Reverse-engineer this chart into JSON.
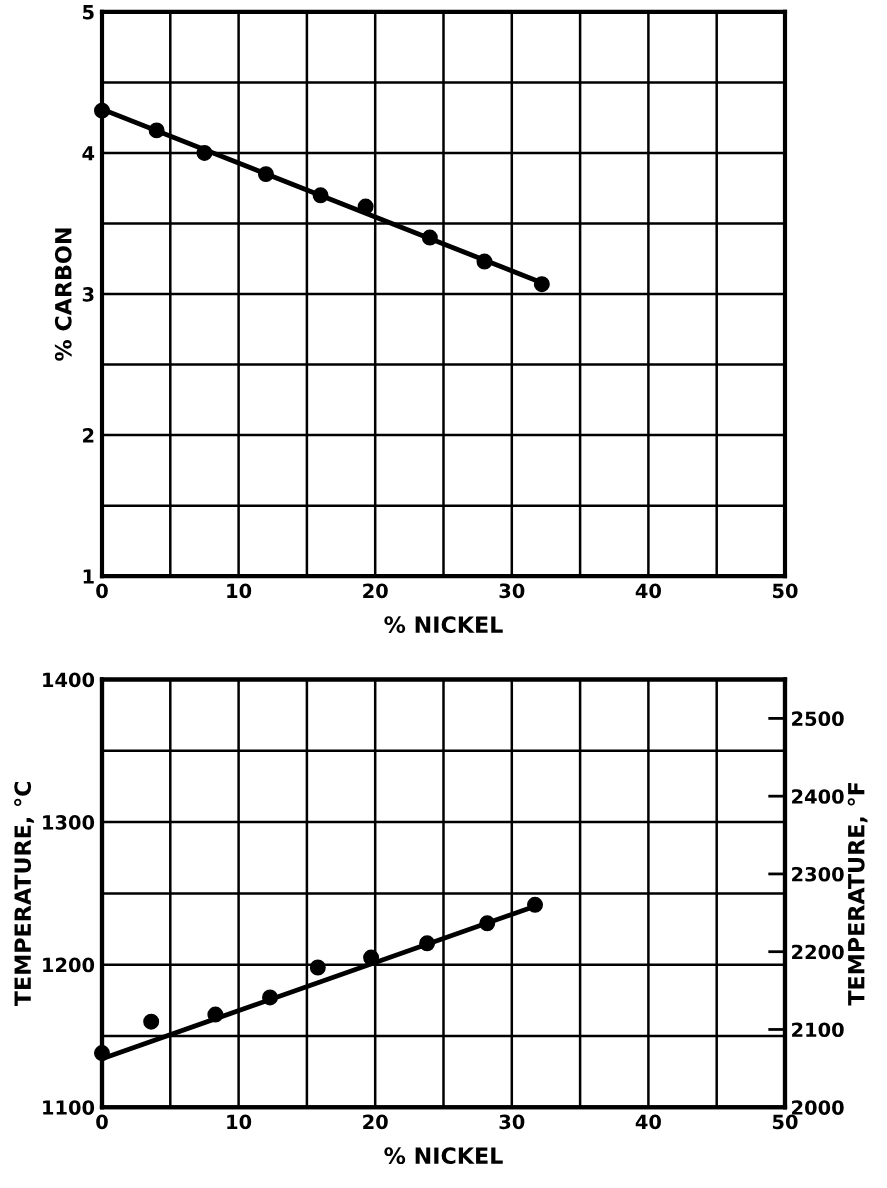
{
  "chart_data": [
    {
      "type": "scatter",
      "xlabel": "% NICKEL",
      "ylabel": "% CARBON",
      "marker": "circle",
      "grid": true,
      "legend": false,
      "xlim": [
        0,
        50
      ],
      "xticks": [
        0,
        {
          "value": 5,
          "label": null
        },
        10,
        {
          "value": 15,
          "label": null
        },
        20,
        {
          "value": 25,
          "label": null
        },
        30,
        {
          "value": 35,
          "label": null
        },
        40,
        {
          "value": 45,
          "label": null
        },
        50
      ],
      "ylim": [
        1,
        5
      ],
      "yticks": [
        1,
        {
          "value": 1.5,
          "label": null
        },
        2,
        {
          "value": 2.5,
          "label": null
        },
        3,
        {
          "value": 3.5,
          "label": null
        },
        4,
        {
          "value": 4.5,
          "label": null
        },
        5
      ],
      "series": [
        {
          "color": "#000000",
          "x": [
            0,
            4,
            7.5,
            12,
            16,
            19.3,
            24,
            28,
            32.2
          ],
          "values": [
            4.3,
            4.16,
            4.0,
            3.85,
            3.7,
            3.62,
            3.4,
            3.23,
            3.07
          ]
        },
        {
          "type": "line",
          "color": "#000000",
          "marker": "none",
          "line_style": "solid",
          "x": [
            0,
            32.2
          ],
          "values": [
            4.31,
            3.08
          ]
        }
      ]
    },
    {
      "type": "scatter",
      "xlabel": "% NICKEL",
      "ylabel": "TEMPERATURE, °C",
      "y2label": "TEMPERATURE, °F",
      "marker": "circle",
      "grid": true,
      "legend": false,
      "xlim": [
        0,
        50
      ],
      "xticks": [
        0,
        {
          "value": 5,
          "label": null
        },
        10,
        {
          "value": 15,
          "label": null
        },
        20,
        {
          "value": 25,
          "label": null
        },
        30,
        {
          "value": 35,
          "label": null
        },
        40,
        {
          "value": 45,
          "label": null
        },
        50
      ],
      "ylim": [
        1100,
        1400
      ],
      "yticks": [
        1100,
        {
          "value": 1150,
          "label": null
        },
        1200,
        {
          "value": 1250,
          "label": null
        },
        1300,
        {
          "value": 1350,
          "label": null
        },
        1400
      ],
      "y2lim": [
        2000,
        2550
      ],
      "y2ticks": [
        2000,
        2100,
        2200,
        2300,
        2400,
        2500
      ],
      "series": [
        {
          "color": "#000000",
          "x": [
            0,
            3.6,
            8.3,
            12.3,
            15.8,
            19.7,
            23.8,
            28.2,
            31.7
          ],
          "values": [
            1138,
            1160,
            1165,
            1177,
            1198,
            1205,
            1215,
            1229,
            1242
          ]
        },
        {
          "type": "line",
          "color": "#000000",
          "marker": "none",
          "line_style": "solid",
          "x": [
            0,
            31.7
          ],
          "values": [
            1134,
            1241
          ]
        }
      ]
    }
  ]
}
